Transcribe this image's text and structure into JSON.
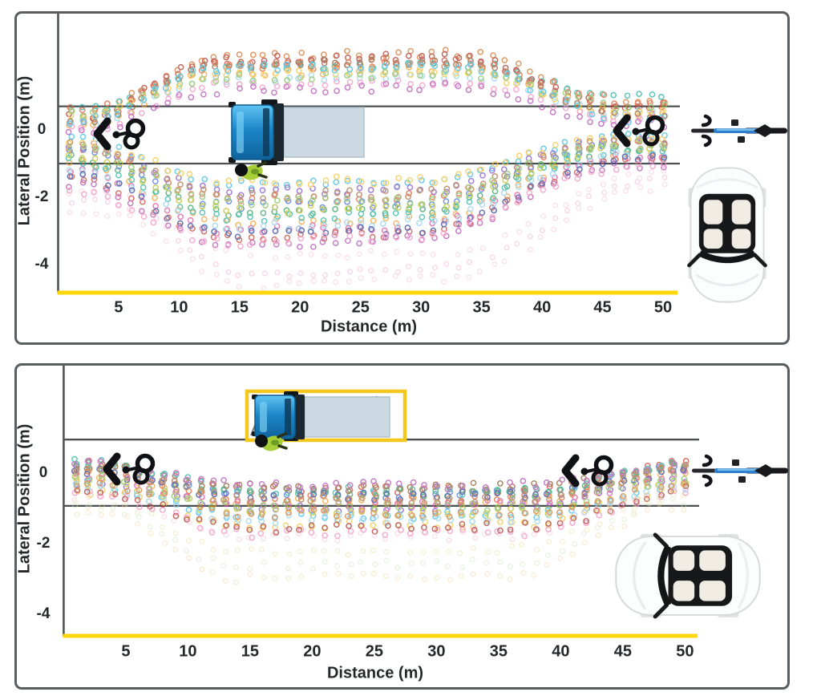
{
  "figure_type": "two-panel scatter figure of cyclist passing trajectories around a parked truck",
  "chart_data": [
    {
      "type": "scatter",
      "panel": "truck parked in traffic lane",
      "xlabel": "Distance (m)",
      "ylabel": "Lateral Position (m)",
      "x_ticks": [
        5,
        10,
        15,
        20,
        25,
        30,
        35,
        40,
        45,
        50
      ],
      "y_ticks": [
        0,
        -2,
        -4
      ],
      "xlim": [
        0,
        51.5
      ],
      "ylim": [
        -4.8,
        3.5
      ],
      "grid": false,
      "sample_step_m": 1,
      "lane_boundaries_y_m": [
        0.7,
        -1.0
      ],
      "series_format": "[start_y_m, peak_y_m, end_y_m, color]",
      "groups": [
        {
          "name": "pass-high-side",
          "rise": [
            2,
            13
          ],
          "fall": [
            33,
            47
          ],
          "opacity": 0.72,
          "series": [
            [
              0.5,
              2.25,
              0.8,
              "#d4722c"
            ],
            [
              0.3,
              2.05,
              0.6,
              "#c43e2f"
            ],
            [
              0.6,
              1.9,
              1.0,
              "#21b1a0"
            ],
            [
              0.1,
              1.75,
              0.4,
              "#f39c2c"
            ],
            [
              0.4,
              2.15,
              0.7,
              "#a93226"
            ],
            [
              0.2,
              1.55,
              0.5,
              "#8fd0ee"
            ],
            [
              0.55,
              1.95,
              0.9,
              "#e0592e"
            ],
            [
              0.0,
              1.4,
              0.3,
              "#ef8fc0"
            ],
            [
              0.35,
              1.7,
              0.55,
              "#f5c33b"
            ],
            [
              0.15,
              2.0,
              0.45,
              "#8c5a2b"
            ],
            [
              0.5,
              1.6,
              0.75,
              "#7fbf5a"
            ],
            [
              -0.1,
              1.25,
              0.2,
              "#b04fb0"
            ],
            [
              0.25,
              1.85,
              0.35,
              "#35b8e0"
            ]
          ]
        },
        {
          "name": "pass-low-side",
          "rise": [
            1,
            14
          ],
          "fall": [
            30,
            46
          ],
          "opacity": 0.72,
          "series": [
            [
              -0.3,
              -1.6,
              -0.2,
              "#35b8e0"
            ],
            [
              -0.5,
              -2.0,
              -0.4,
              "#e0592e"
            ],
            [
              -0.8,
              -2.4,
              -0.5,
              "#2e9e5b"
            ],
            [
              -0.4,
              -1.8,
              -0.3,
              "#7d4fc9"
            ],
            [
              -1.0,
              -2.7,
              -0.7,
              "#f39c2c"
            ],
            [
              -0.6,
              -2.2,
              -0.45,
              "#3f6fd8"
            ],
            [
              -1.2,
              -2.9,
              -0.8,
              "#d9529c"
            ],
            [
              -0.35,
              -1.5,
              -0.25,
              "#f5c33b"
            ],
            [
              -0.9,
              -2.55,
              -0.6,
              "#21b1a0"
            ],
            [
              -1.4,
              -3.1,
              -0.9,
              "#c43e2f"
            ],
            [
              -0.7,
              -2.35,
              -0.5,
              "#bcbd22"
            ],
            [
              -1.1,
              -2.8,
              -0.75,
              "#8fd0ee"
            ],
            [
              -1.6,
              -3.3,
              -1.0,
              "#b04fb0"
            ],
            [
              -0.45,
              -1.9,
              -0.35,
              "#a97142"
            ],
            [
              -1.3,
              -3.0,
              -0.85,
              "#2c3e97"
            ],
            [
              -0.55,
              -2.1,
              -0.4,
              "#7fbf5a"
            ],
            [
              -1.8,
              -3.2,
              -1.1,
              "#ef8fc0"
            ]
          ]
        },
        {
          "name": "wide-avoidance",
          "rise": [
            4,
            16
          ],
          "fall": [
            33,
            48
          ],
          "opacity": 0.4,
          "series": [
            [
              -1.9,
              -3.7,
              -1.3,
              "#f2b8cd"
            ],
            [
              -2.2,
              -4.15,
              -1.5,
              "#ef9fc4"
            ],
            [
              -2.5,
              -4.5,
              -1.7,
              "#f2b8cd"
            ]
          ]
        }
      ],
      "scene": {
        "truck_parked_in_lane_x_m": [
          14.3,
          25.2
        ],
        "truck_y_extent_m": [
          0.69,
          -0.88
        ],
        "worker_x_m": 16.0,
        "worker_y_m": -1.2,
        "cyclist_markers_m": [
          [
            5.8,
            -0.1
          ],
          [
            48.7,
            0.0
          ]
        ],
        "bicycle_top_view": "right margin at y = 0",
        "car_top_view": "lower right corner of panel"
      }
    },
    {
      "type": "scatter",
      "panel": "truck parked in layby off the lane",
      "xlabel": "Distance (m)",
      "ylabel": "Lateral Position (m)",
      "x_ticks": [
        5,
        10,
        15,
        20,
        25,
        30,
        35,
        40,
        45,
        50
      ],
      "y_ticks": [
        0,
        -2,
        -4
      ],
      "xlim": [
        0,
        51.5
      ],
      "ylim": [
        -4.6,
        3.1
      ],
      "grid": false,
      "sample_step_m": 1,
      "lane_boundaries_y_m": [
        0.95,
        -0.93
      ],
      "series_format": "[start_y_m, peak_y_m, end_y_m, color]",
      "groups": [
        {
          "name": "in-lane",
          "rise": [
            2,
            15
          ],
          "fall": [
            38,
            50
          ],
          "opacity": 0.72,
          "series": [
            [
              0.25,
              -0.45,
              0.3,
              "#c43e2f"
            ],
            [
              0.1,
              -0.6,
              0.15,
              "#3f6fd8"
            ],
            [
              -0.05,
              -0.8,
              0.0,
              "#f39c2c"
            ],
            [
              0.3,
              -0.5,
              0.25,
              "#21b1a0"
            ],
            [
              -0.2,
              -1.0,
              -0.15,
              "#7d4fc9"
            ],
            [
              0.05,
              -0.7,
              0.1,
              "#e0592e"
            ],
            [
              -0.35,
              -1.2,
              -0.3,
              "#35b8e0"
            ],
            [
              0.2,
              -0.55,
              0.2,
              "#2e9e5b"
            ],
            [
              -0.1,
              -0.9,
              -0.05,
              "#d9529c"
            ],
            [
              -0.5,
              -1.45,
              -0.4,
              "#f5c33b"
            ],
            [
              0.15,
              -0.4,
              0.18,
              "#8c5a2b"
            ],
            [
              -0.25,
              -1.1,
              -0.2,
              "#bcbd22"
            ],
            [
              -0.6,
              -1.7,
              -0.5,
              "#ef8fc0"
            ],
            [
              0.0,
              -0.65,
              0.05,
              "#2c3e97"
            ],
            [
              -0.4,
              -1.3,
              -0.35,
              "#8fd0ee"
            ],
            [
              0.28,
              -0.35,
              0.3,
              "#b04fb0"
            ],
            [
              -0.15,
              -0.95,
              -0.1,
              "#7fbf5a"
            ],
            [
              -0.55,
              -1.55,
              -0.45,
              "#a93226"
            ],
            [
              0.08,
              -0.75,
              0.12,
              "#a97142"
            ],
            [
              -0.3,
              -1.15,
              -0.25,
              "#d4722c"
            ]
          ]
        },
        {
          "name": "wide-avoidance",
          "rise": [
            3,
            14
          ],
          "fall": [
            36,
            49
          ],
          "opacity": 0.42,
          "series": [
            [
              -0.7,
              -1.8,
              -0.55,
              "#f2b8cd"
            ],
            [
              -0.85,
              -2.2,
              -0.7,
              "#e6e09a"
            ],
            [
              -1.0,
              -2.6,
              -0.8,
              "#cfe6bb"
            ],
            [
              -1.15,
              -2.95,
              -0.95,
              "#f3d6a0"
            ]
          ]
        }
      ],
      "scene": {
        "truck_in_layby_x_m": [
          15.4,
          26.3
        ],
        "layby_box_x_m": [
          14.8,
          27.5
        ],
        "layby_box_y_m": [
          0.93,
          2.32
        ],
        "worker_x_m": 16.4,
        "worker_y_m": 0.89,
        "cyclist_markers_m": [
          [
            6.0,
            -0.05
          ],
          [
            42.9,
            0.0
          ]
        ],
        "bicycle_top_view": "right margin at y = 0",
        "car_top_view": "lower right inside panel"
      }
    }
  ],
  "colors": {
    "axis_line": "#ffd60a",
    "lane_line": "#4a4f51",
    "frame": "#585e60",
    "truck_cab": "#1c86c8",
    "truck_trailer": "#ccd9e3",
    "layby_box": "#f3c71c",
    "worker_vest": "#a6ce39",
    "text": "#25282b"
  }
}
